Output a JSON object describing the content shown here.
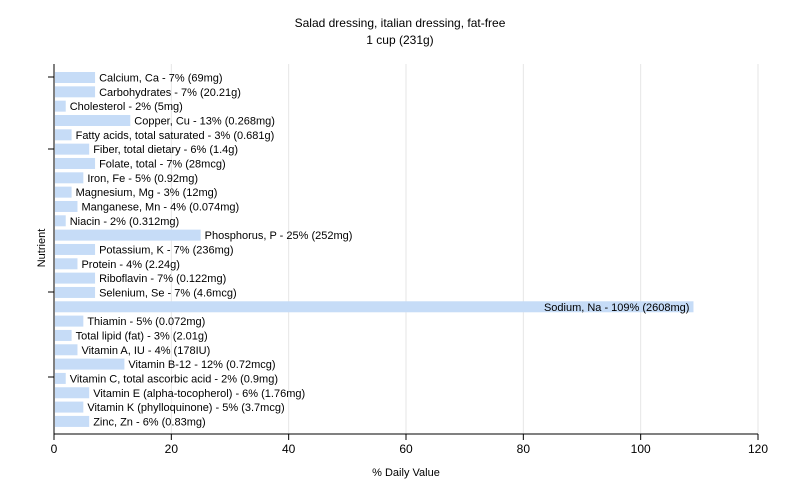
{
  "chart_data": {
    "type": "bar",
    "orientation": "horizontal",
    "title": "Salad dressing, italian dressing, fat-free",
    "subtitle": "1 cup (231g)",
    "xlabel": "% Daily Value",
    "ylabel": "Nutrient",
    "xlim": [
      0,
      120
    ],
    "xticks": [
      "0",
      "20",
      "40",
      "60",
      "80",
      "100",
      "120"
    ],
    "grid": true,
    "colors": {
      "bar": "#c6dcf7",
      "grid": "#e6e6e6",
      "axis": "#000000"
    },
    "categories": [
      "Calcium, Ca",
      "Carbohydrates",
      "Cholesterol",
      "Copper, Cu",
      "Fatty acids, total saturated",
      "Fiber, total dietary",
      "Folate, total",
      "Iron, Fe",
      "Magnesium, Mg",
      "Manganese, Mn",
      "Niacin",
      "Phosphorus, P",
      "Potassium, K",
      "Protein",
      "Riboflavin",
      "Selenium, Se",
      "Sodium, Na",
      "Thiamin",
      "Total lipid (fat)",
      "Vitamin A, IU",
      "Vitamin B-12",
      "Vitamin C, total ascorbic acid",
      "Vitamin E (alpha-tocopherol)",
      "Vitamin K (phylloquinone)",
      "Zinc, Zn"
    ],
    "values": [
      7,
      7,
      2,
      13,
      3,
      6,
      7,
      5,
      3,
      4,
      2,
      25,
      7,
      4,
      7,
      7,
      109,
      5,
      3,
      4,
      12,
      2,
      6,
      5,
      6
    ],
    "labels": [
      "Calcium, Ca - 7% (69mg)",
      "Carbohydrates - 7% (20.21g)",
      "Cholesterol - 2% (5mg)",
      "Copper, Cu - 13% (0.268mg)",
      "Fatty acids, total saturated - 3% (0.681g)",
      "Fiber, total dietary - 6% (1.4g)",
      "Folate, total - 7% (28mcg)",
      "Iron, Fe - 5% (0.92mg)",
      "Magnesium, Mg - 3% (12mg)",
      "Manganese, Mn - 4% (0.074mg)",
      "Niacin - 2% (0.312mg)",
      "Phosphorus, P - 25% (252mg)",
      "Potassium, K - 7% (236mg)",
      "Protein - 4% (2.24g)",
      "Riboflavin - 7% (0.122mg)",
      "Selenium, Se - 7% (4.6mcg)",
      "Sodium, Na - 109% (2608mg)",
      "Thiamin - 5% (0.072mg)",
      "Total lipid (fat) - 3% (2.01g)",
      "Vitamin A, IU - 4% (178IU)",
      "Vitamin B-12 - 12% (0.72mcg)",
      "Vitamin C, total ascorbic acid - 2% (0.9mg)",
      "Vitamin E (alpha-tocopherol) - 6% (1.76mg)",
      "Vitamin K (phylloquinone) - 5% (3.7mcg)",
      "Zinc, Zn - 6% (0.83mg)"
    ]
  }
}
